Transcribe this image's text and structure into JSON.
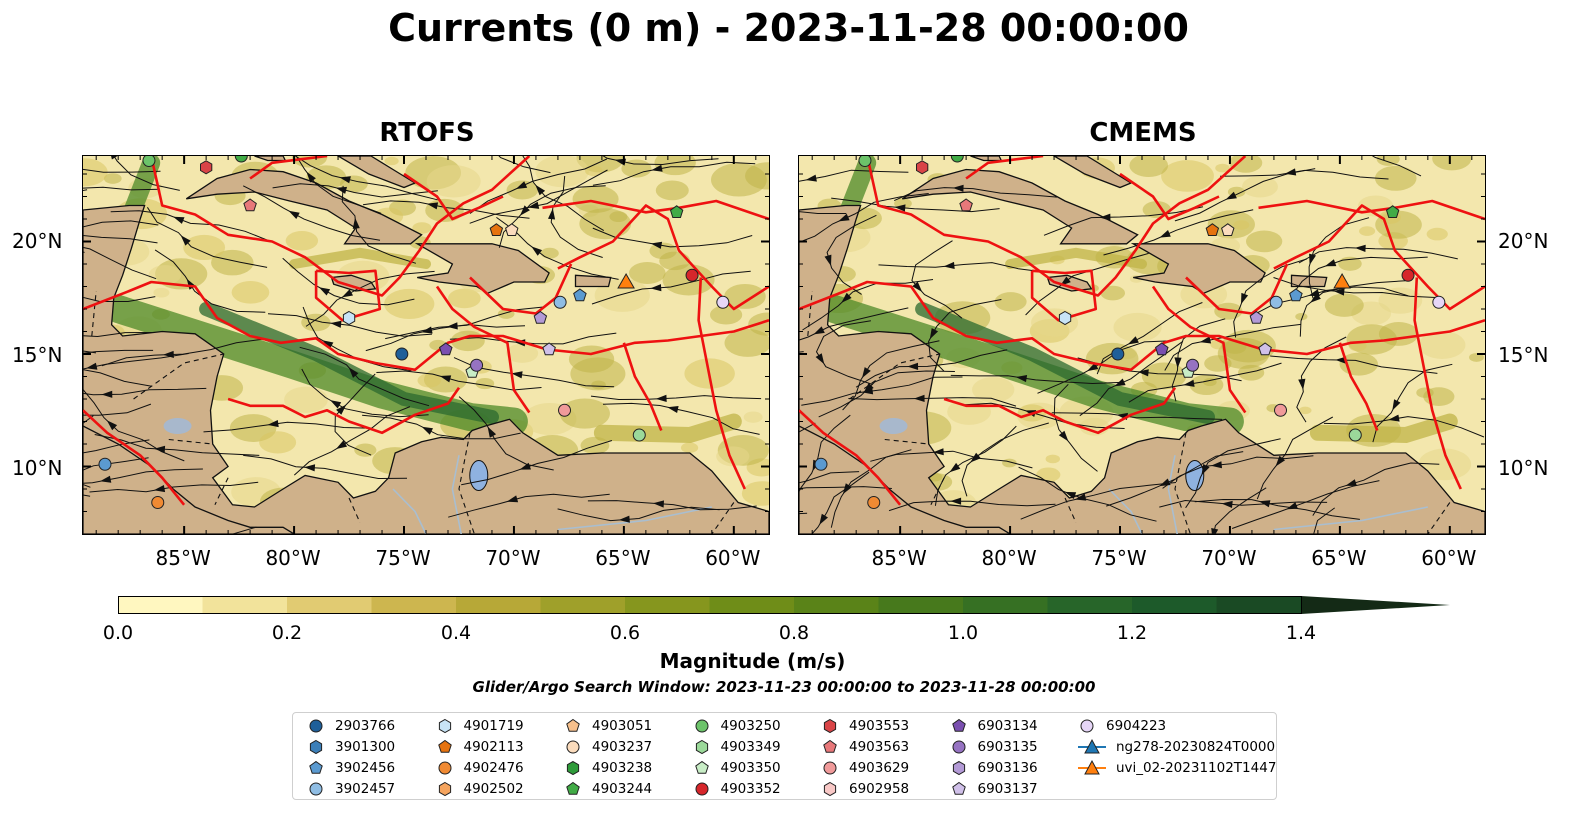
{
  "title": "Currents (0 m) - 2023-11-28 00:00:00",
  "panels": [
    {
      "title": "RTOFS"
    },
    {
      "title": "CMEMS"
    }
  ],
  "lat_ticks": [
    "20°N",
    "15°N",
    "10°N"
  ],
  "lon_ticks": [
    "85°W",
    "80°W",
    "75°W",
    "70°W",
    "65°W",
    "60°W"
  ],
  "colorbar": {
    "label": "Magnitude (m/s)",
    "ticks": [
      "0.0",
      "0.2",
      "0.4",
      "0.6",
      "0.8",
      "1.0",
      "1.2",
      "1.4"
    ],
    "colors": [
      "#fff7c0",
      "#f2e39b",
      "#e1cb72",
      "#cdb64f",
      "#b7a837",
      "#9fa02a",
      "#86961e",
      "#6f8d18",
      "#5a8318",
      "#47791c",
      "#367023",
      "#276529",
      "#1d5a2a",
      "#1a4a24",
      "#17391d",
      "#142a16"
    ]
  },
  "search_window": "Glider/Argo Search Window: 2023-11-23 00:00:00 to 2023-11-28 00:00:00",
  "legend": [
    {
      "label": "2903766",
      "marker": "circle",
      "color": "#1f5f99"
    },
    {
      "label": "3901300",
      "marker": "hexagon",
      "color": "#3c7fb8"
    },
    {
      "label": "3902456",
      "marker": "pentagon",
      "color": "#5b9ad0"
    },
    {
      "label": "3902457",
      "marker": "circle",
      "color": "#8fbde4"
    },
    {
      "label": "4901719",
      "marker": "hexagon",
      "color": "#c8e4f6"
    },
    {
      "label": "4902113",
      "marker": "pentagon",
      "color": "#e6730f"
    },
    {
      "label": "4902476",
      "marker": "circle",
      "color": "#f08a33"
    },
    {
      "label": "4902502",
      "marker": "hexagon",
      "color": "#f5a45e"
    },
    {
      "label": "4903051",
      "marker": "pentagon",
      "color": "#f7c08c"
    },
    {
      "label": "4903237",
      "marker": "circle",
      "color": "#fbdcbd"
    },
    {
      "label": "4903238",
      "marker": "hexagon",
      "color": "#2f9b3a"
    },
    {
      "label": "4903244",
      "marker": "pentagon",
      "color": "#41ab46"
    },
    {
      "label": "4903250",
      "marker": "circle",
      "color": "#6cc36a"
    },
    {
      "label": "4903349",
      "marker": "hexagon",
      "color": "#9bd99a"
    },
    {
      "label": "4903350",
      "marker": "pentagon",
      "color": "#c8edc6"
    },
    {
      "label": "4903352",
      "marker": "circle",
      "color": "#d6262b"
    },
    {
      "label": "4903553",
      "marker": "hexagon",
      "color": "#d94447"
    },
    {
      "label": "4903563",
      "marker": "pentagon",
      "color": "#e8787a"
    },
    {
      "label": "4903629",
      "marker": "circle",
      "color": "#f09a9a"
    },
    {
      "label": "6902958",
      "marker": "hexagon",
      "color": "#f8c8c6"
    },
    {
      "label": "6903134",
      "marker": "pentagon",
      "color": "#7a4fb0"
    },
    {
      "label": "6903135",
      "marker": "circle",
      "color": "#9673c2"
    },
    {
      "label": "6903136",
      "marker": "hexagon",
      "color": "#b39ad6"
    },
    {
      "label": "6903137",
      "marker": "pentagon",
      "color": "#d0c0e9"
    },
    {
      "label": "6904223",
      "marker": "circle",
      "color": "#e6d6f7"
    },
    {
      "label": "ng278-20230824T0000",
      "marker": "triangle-line",
      "color": "#1f77b4"
    },
    {
      "label": "uvi_02-20231102T1447",
      "marker": "triangle-line",
      "color": "#ff7f0e"
    }
  ],
  "map_colors": {
    "land": "#cfb18a",
    "ocean_low": "#f3e7ad",
    "ocean_mid": "#c0b448",
    "ocean_high": "#4d8a28",
    "ocean_max": "#2b6a2f",
    "eez": "#ee1111",
    "lake": "#8fb2e0",
    "river": "#a9bed0"
  },
  "markers": [
    {
      "lon": -75.1,
      "lat": 15.0,
      "color": "#1f5f99",
      "shape": "circle"
    },
    {
      "lon": -88.6,
      "lat": 10.1,
      "color": "#5b9ad0",
      "shape": "circle"
    },
    {
      "lon": -67.9,
      "lat": 17.3,
      "color": "#8fbde4",
      "shape": "circle"
    },
    {
      "lon": -67.0,
      "lat": 17.6,
      "color": "#5b9ad0",
      "shape": "pentagon"
    },
    {
      "lon": -77.5,
      "lat": 16.6,
      "color": "#c8e4f6",
      "shape": "hexagon"
    },
    {
      "lon": -70.8,
      "lat": 20.5,
      "color": "#e6730f",
      "shape": "pentagon"
    },
    {
      "lon": -70.1,
      "lat": 20.5,
      "color": "#fbdcbd",
      "shape": "pentagon"
    },
    {
      "lon": -86.2,
      "lat": 8.4,
      "color": "#f08a33",
      "shape": "circle"
    },
    {
      "lon": -86.6,
      "lat": 23.6,
      "color": "#6cc36a",
      "shape": "circle"
    },
    {
      "lon": -82.4,
      "lat": 23.8,
      "color": "#41ab46",
      "shape": "circle"
    },
    {
      "lon": -62.6,
      "lat": 21.3,
      "color": "#41ab46",
      "shape": "pentagon"
    },
    {
      "lon": -64.3,
      "lat": 11.4,
      "color": "#9bd99a",
      "shape": "circle"
    },
    {
      "lon": -71.9,
      "lat": 14.2,
      "color": "#c8edc6",
      "shape": "pentagon"
    },
    {
      "lon": -84.0,
      "lat": 23.3,
      "color": "#d94447",
      "shape": "hexagon"
    },
    {
      "lon": -82.0,
      "lat": 21.6,
      "color": "#e8787a",
      "shape": "pentagon"
    },
    {
      "lon": -61.9,
      "lat": 18.5,
      "color": "#d6262b",
      "shape": "circle"
    },
    {
      "lon": -67.7,
      "lat": 12.5,
      "color": "#f09a9a",
      "shape": "circle"
    },
    {
      "lon": -73.1,
      "lat": 15.2,
      "color": "#7a4fb0",
      "shape": "pentagon"
    },
    {
      "lon": -71.7,
      "lat": 14.5,
      "color": "#9673c2",
      "shape": "circle"
    },
    {
      "lon": -68.8,
      "lat": 16.6,
      "color": "#b39ad6",
      "shape": "pentagon"
    },
    {
      "lon": -68.4,
      "lat": 15.2,
      "color": "#d0c0e9",
      "shape": "pentagon"
    },
    {
      "lon": -60.5,
      "lat": 17.3,
      "color": "#e6d6f7",
      "shape": "circle"
    },
    {
      "lon": -64.9,
      "lat": 18.2,
      "color": "#ff7f0e",
      "shape": "triangle"
    }
  ]
}
